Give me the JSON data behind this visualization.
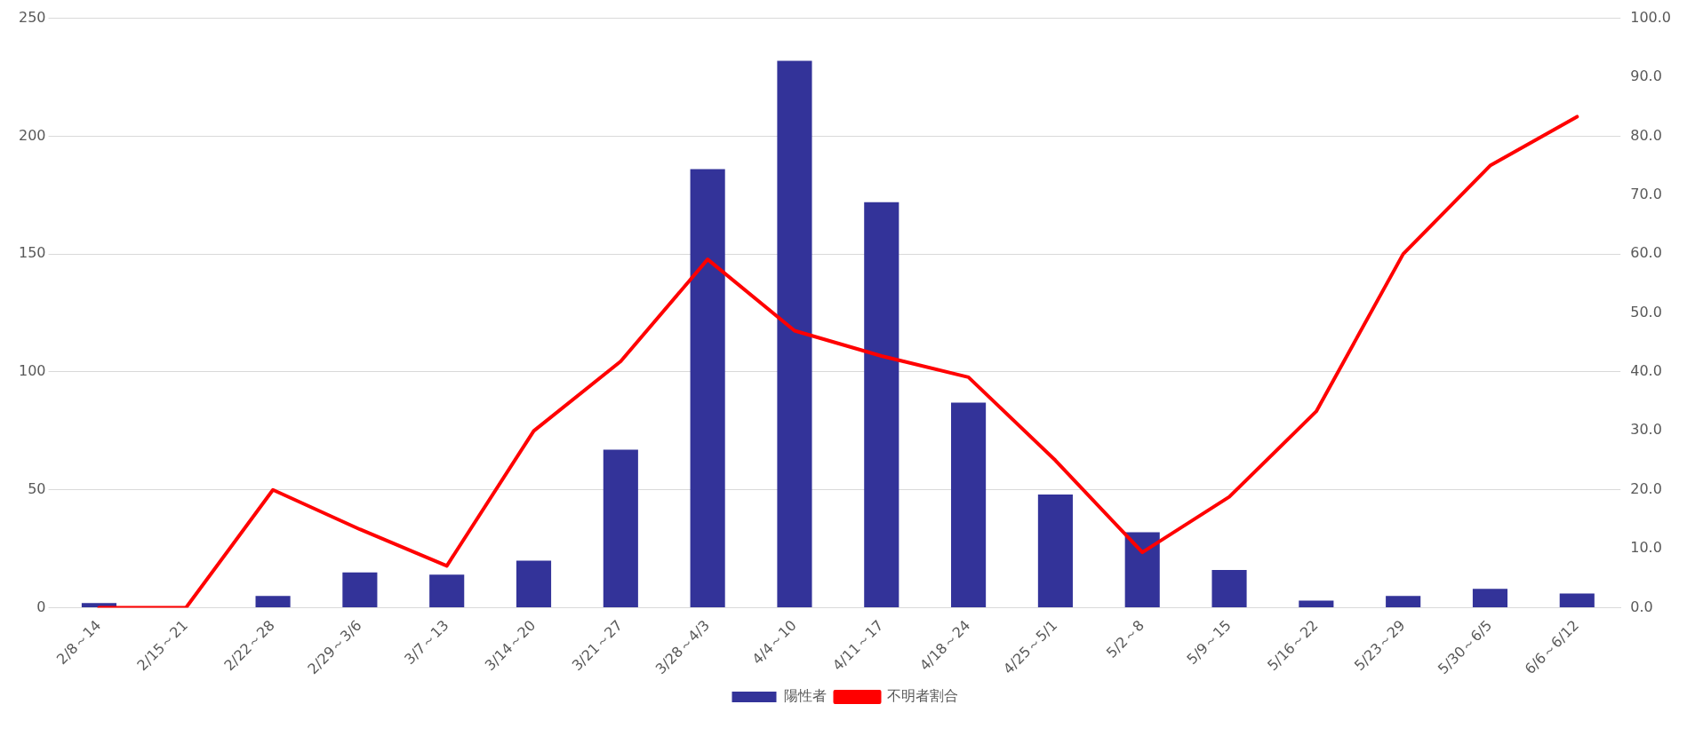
{
  "chart_data": {
    "type": "bar",
    "categories": [
      "2/8～14",
      "2/15～21",
      "2/22～28",
      "2/29～3/6",
      "3/7～13",
      "3/14～20",
      "3/21～27",
      "3/28～4/3",
      "4/4～10",
      "4/11～17",
      "4/18～24",
      "4/25～5/1",
      "5/2～8",
      "5/9～15",
      "5/16～22",
      "5/23～29",
      "5/30～6/5",
      "6/6～6/12"
    ],
    "series": [
      {
        "name": "陽性者",
        "color": "#333399",
        "values": [
          2,
          0,
          5,
          15,
          14,
          20,
          67,
          186,
          232,
          172,
          87,
          48,
          32,
          16,
          3,
          5,
          8,
          6
        ]
      },
      {
        "name": "不明者割合",
        "type": "line",
        "axis": "y2",
        "color": "#ff0000",
        "values": [
          0,
          0,
          20.0,
          13.3,
          7.1,
          30.0,
          41.8,
          59.1,
          47.0,
          42.7,
          39.1,
          25.0,
          9.4,
          18.8,
          33.3,
          60.0,
          75.0,
          83.3
        ]
      }
    ],
    "ylim": [
      0,
      250
    ],
    "yticks": [
      0,
      50,
      100,
      150,
      200,
      250
    ],
    "y2lim": [
      0,
      100
    ],
    "y2ticks": [
      {
        "value": 0,
        "label": "0.0"
      },
      {
        "value": 10,
        "label": "10.0"
      },
      {
        "value": 20,
        "label": "20.0"
      },
      {
        "value": 30,
        "label": "30.0"
      },
      {
        "value": 40,
        "label": "40.0"
      },
      {
        "value": 50,
        "label": "50.0"
      },
      {
        "value": 60,
        "label": "60.0"
      },
      {
        "value": 70,
        "label": "70.0"
      },
      {
        "value": 80,
        "label": "80.0"
      },
      {
        "value": 90,
        "label": "90.0"
      },
      {
        "value": 100,
        "label": "100.0"
      }
    ],
    "grid": "y",
    "legend": "bottom",
    "marker": "none"
  }
}
